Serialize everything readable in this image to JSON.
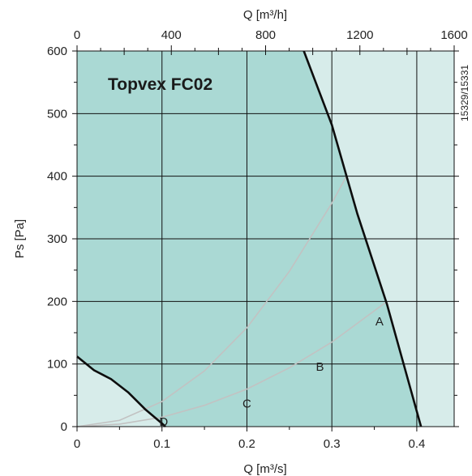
{
  "chart_data": {
    "type": "line",
    "title": "Topvex FC02",
    "side_code": "15329/15331",
    "xlabel": "Q [m³/s]",
    "ylabel": "Ps [Pa]",
    "x2label": "Q [m³/h]",
    "xlim": [
      0,
      0.444
    ],
    "ylim": [
      0,
      600
    ],
    "x2lim": [
      0,
      1600
    ],
    "x_ticks": [
      0,
      0.1,
      0.2,
      0.3,
      0.4
    ],
    "x_tick_labels": [
      "0",
      "0.1",
      "0.2",
      "0.3",
      "0.4"
    ],
    "y_ticks": [
      0,
      100,
      200,
      300,
      400,
      500,
      600
    ],
    "y_tick_labels": [
      "0",
      "100",
      "200",
      "300",
      "400",
      "500",
      "600"
    ],
    "x2_ticks": [
      0,
      400,
      800,
      1200,
      1600
    ],
    "x2_tick_labels": [
      "0",
      "400",
      "800",
      "1200",
      "1600"
    ],
    "grid": true,
    "colors": {
      "working_area": "#aad9d4",
      "outside_area": "#d7ecea",
      "grid": "#111111",
      "max_curve": "#0d0d0d",
      "min_curve": "#0d0d0d",
      "system_curve": "#c2c2c2"
    },
    "series": [
      {
        "role": "max_curve",
        "x": [
          0.267,
          0.3,
          0.33,
          0.365,
          0.405
        ],
        "y": [
          600,
          482,
          340,
          195,
          0
        ]
      },
      {
        "role": "min_curve",
        "x": [
          0,
          0.02,
          0.04,
          0.06,
          0.08,
          0.1,
          0.104
        ],
        "y": [
          112,
          90,
          76,
          55,
          28,
          5,
          0
        ]
      },
      {
        "role": "system_curve",
        "x": [
          0,
          0.05,
          0.1,
          0.15,
          0.2,
          0.25,
          0.3,
          0.318
        ],
        "y": [
          0,
          10,
          40,
          89,
          158,
          248,
          357,
          402
        ]
      },
      {
        "role": "system_curve",
        "x": [
          0,
          0.05,
          0.1,
          0.15,
          0.2,
          0.25,
          0.3,
          0.365
        ],
        "y": [
          0,
          4,
          15,
          34,
          60,
          94,
          135,
          200
        ]
      }
    ],
    "point_labels": [
      {
        "text": "A",
        "x": 0.356,
        "y": 168
      },
      {
        "text": "B",
        "x": 0.286,
        "y": 96
      },
      {
        "text": "C",
        "x": 0.2,
        "y": 37
      },
      {
        "text": "D",
        "x": 0.102,
        "y": 8
      }
    ]
  }
}
